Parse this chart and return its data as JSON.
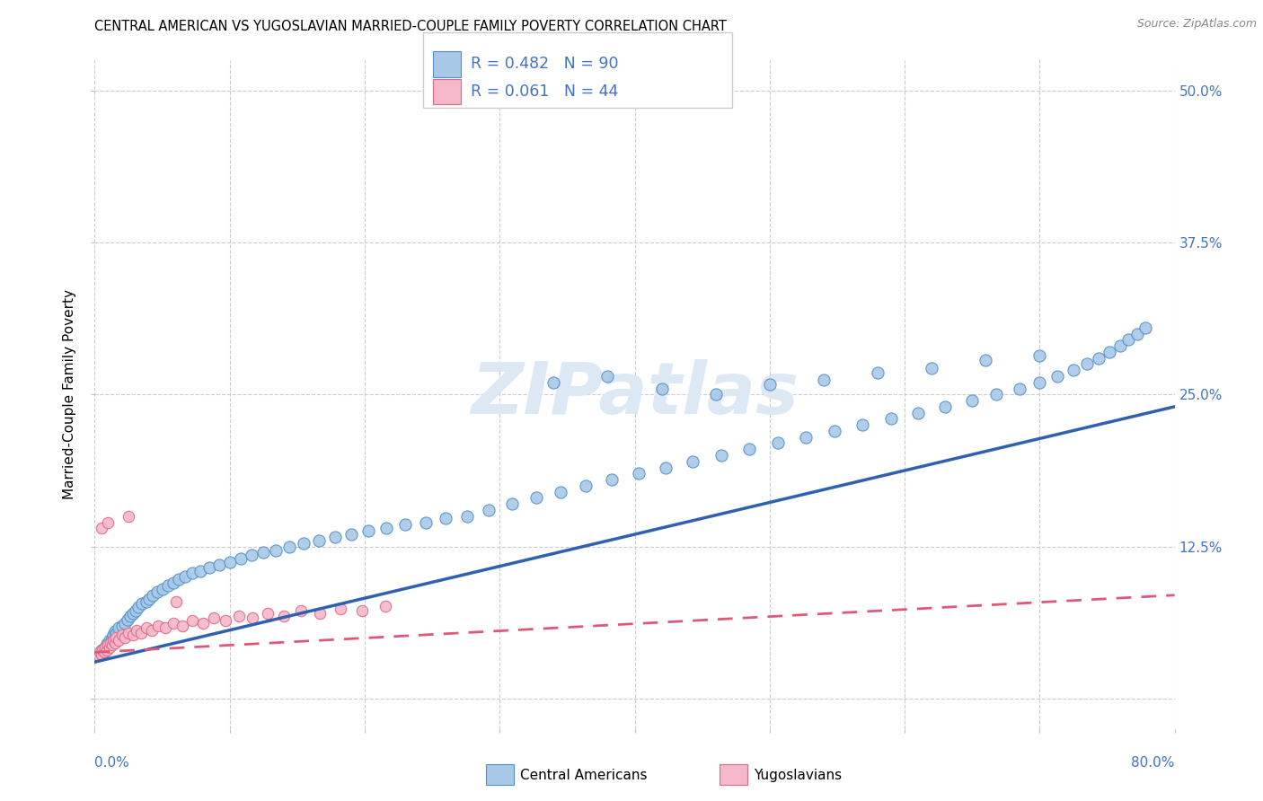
{
  "title": "CENTRAL AMERICAN VS YUGOSLAVIAN MARRIED-COUPLE FAMILY POVERTY CORRELATION CHART",
  "source": "Source: ZipAtlas.com",
  "ylabel": "Married-Couple Family Poverty",
  "right_yticks": [
    0.0,
    0.125,
    0.25,
    0.375,
    0.5
  ],
  "right_yticklabels": [
    "",
    "12.5%",
    "25.0%",
    "37.5%",
    "50.0%"
  ],
  "xlim": [
    0.0,
    0.8
  ],
  "ylim": [
    -0.025,
    0.525
  ],
  "blue_R": 0.482,
  "blue_N": 90,
  "pink_R": 0.061,
  "pink_N": 44,
  "blue_color": "#a8c8e8",
  "pink_color": "#f4b8c8",
  "blue_edge_color": "#5090c8",
  "pink_edge_color": "#e06888",
  "blue_line_color": "#3060b0",
  "pink_line_color": "#e05878",
  "watermark_color": "#dce8f4",
  "legend_label_blue": "Central Americans",
  "legend_label_pink": "Yugoslavians",
  "title_fontsize": 10.5,
  "source_fontsize": 9,
  "blue_scatter_x": [
    0.005,
    0.007,
    0.008,
    0.009,
    0.01,
    0.011,
    0.012,
    0.013,
    0.014,
    0.015,
    0.016,
    0.018,
    0.02,
    0.022,
    0.024,
    0.026,
    0.028,
    0.03,
    0.032,
    0.035,
    0.038,
    0.04,
    0.043,
    0.046,
    0.05,
    0.054,
    0.058,
    0.062,
    0.067,
    0.072,
    0.078,
    0.085,
    0.092,
    0.1,
    0.108,
    0.116,
    0.125,
    0.134,
    0.144,
    0.155,
    0.166,
    0.178,
    0.19,
    0.203,
    0.216,
    0.23,
    0.245,
    0.26,
    0.276,
    0.292,
    0.309,
    0.327,
    0.345,
    0.364,
    0.383,
    0.403,
    0.423,
    0.443,
    0.464,
    0.485,
    0.506,
    0.527,
    0.548,
    0.569,
    0.59,
    0.61,
    0.63,
    0.65,
    0.668,
    0.685,
    0.7,
    0.713,
    0.725,
    0.735,
    0.744,
    0.752,
    0.76,
    0.766,
    0.772,
    0.778,
    0.34,
    0.38,
    0.42,
    0.46,
    0.5,
    0.54,
    0.58,
    0.62,
    0.66,
    0.7
  ],
  "blue_scatter_y": [
    0.04,
    0.038,
    0.042,
    0.045,
    0.043,
    0.048,
    0.046,
    0.05,
    0.052,
    0.055,
    0.053,
    0.058,
    0.06,
    0.062,
    0.065,
    0.068,
    0.07,
    0.072,
    0.075,
    0.078,
    0.08,
    0.082,
    0.085,
    0.088,
    0.09,
    0.093,
    0.095,
    0.098,
    0.1,
    0.103,
    0.105,
    0.108,
    0.11,
    0.112,
    0.115,
    0.118,
    0.12,
    0.122,
    0.125,
    0.128,
    0.13,
    0.133,
    0.135,
    0.138,
    0.14,
    0.143,
    0.145,
    0.148,
    0.15,
    0.155,
    0.16,
    0.165,
    0.17,
    0.175,
    0.18,
    0.185,
    0.19,
    0.195,
    0.2,
    0.205,
    0.21,
    0.215,
    0.22,
    0.225,
    0.23,
    0.235,
    0.24,
    0.245,
    0.25,
    0.255,
    0.26,
    0.265,
    0.27,
    0.275,
    0.28,
    0.285,
    0.29,
    0.295,
    0.3,
    0.305,
    0.26,
    0.265,
    0.255,
    0.25,
    0.258,
    0.262,
    0.268,
    0.272,
    0.278,
    0.282
  ],
  "pink_scatter_x": [
    0.003,
    0.004,
    0.005,
    0.006,
    0.007,
    0.008,
    0.009,
    0.01,
    0.011,
    0.012,
    0.013,
    0.014,
    0.015,
    0.016,
    0.018,
    0.02,
    0.022,
    0.025,
    0.028,
    0.031,
    0.034,
    0.038,
    0.042,
    0.047,
    0.052,
    0.058,
    0.065,
    0.072,
    0.08,
    0.088,
    0.097,
    0.107,
    0.117,
    0.128,
    0.14,
    0.153,
    0.167,
    0.182,
    0.198,
    0.215,
    0.005,
    0.01,
    0.025,
    0.06
  ],
  "pink_scatter_y": [
    0.035,
    0.038,
    0.036,
    0.04,
    0.038,
    0.042,
    0.04,
    0.044,
    0.042,
    0.046,
    0.044,
    0.048,
    0.046,
    0.05,
    0.048,
    0.052,
    0.05,
    0.054,
    0.052,
    0.056,
    0.054,
    0.058,
    0.056,
    0.06,
    0.058,
    0.062,
    0.06,
    0.064,
    0.062,
    0.066,
    0.064,
    0.068,
    0.066,
    0.07,
    0.068,
    0.072,
    0.07,
    0.074,
    0.072,
    0.076,
    0.14,
    0.145,
    0.15,
    0.08
  ],
  "blue_line_x": [
    0.0,
    0.8
  ],
  "blue_line_y_start": 0.03,
  "blue_line_y_end": 0.24,
  "pink_line_x": [
    0.0,
    0.8
  ],
  "pink_line_y_start": 0.038,
  "pink_line_y_end": 0.085
}
